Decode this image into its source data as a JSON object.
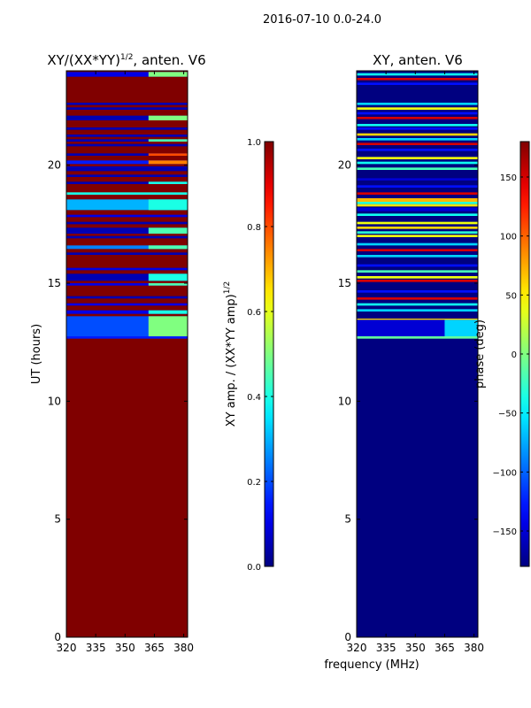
{
  "suptitle": "2016-07-10 0.0-24.0",
  "chart_data": [
    {
      "type": "heatmap",
      "title_main": "XY/(XX*YY)",
      "title_sup": "1/2",
      "title_tail": ", anten. V6",
      "xlabel": "",
      "ylabel": "UT (hours)",
      "xlim": [
        320,
        382
      ],
      "ylim": [
        0,
        24
      ],
      "xticks": [
        320,
        335,
        350,
        365,
        380
      ],
      "yticks": [
        0,
        5,
        10,
        15,
        20
      ],
      "colorbar": {
        "label_main": "XY amp. / (XX*YY amp)",
        "label_sup": "1/2",
        "range": [
          0.0,
          1.0
        ],
        "ticks": [
          "0.0",
          "0.2",
          "0.4",
          "0.6",
          "0.8",
          "1.0"
        ],
        "tick_values": [
          0.0,
          0.2,
          0.4,
          0.6,
          0.8,
          1.0
        ]
      },
      "background_value": 1.0,
      "bands": [
        {
          "y0": 12.65,
          "y1": 12.75,
          "value": 0.15
        },
        {
          "y0": 12.75,
          "y1": 13.6,
          "value": 0.2,
          "patch_x0": 362,
          "value_patch": 0.5
        },
        {
          "y0": 13.7,
          "y1": 13.85,
          "value": 0.1,
          "patch_x0": 362,
          "value_patch": 0.4
        },
        {
          "y0": 14.05,
          "y1": 14.15,
          "value": 0.1
        },
        {
          "y0": 14.35,
          "y1": 14.45,
          "value": 0.05
        },
        {
          "y0": 14.9,
          "y1": 15.0,
          "value": 0.1,
          "patch_x0": 362,
          "value_patch": 0.45
        },
        {
          "y0": 15.1,
          "y1": 15.4,
          "value": 0.05,
          "patch_x0": 362,
          "value_patch": 0.4
        },
        {
          "y0": 15.55,
          "y1": 15.65,
          "value": 0.1
        },
        {
          "y0": 16.2,
          "y1": 16.3,
          "value": 0.05
        },
        {
          "y0": 16.45,
          "y1": 16.6,
          "value": 0.25,
          "patch_x0": 362,
          "value_patch": 0.45
        },
        {
          "y0": 16.9,
          "y1": 17.0,
          "value": 0.05
        },
        {
          "y0": 17.1,
          "y1": 17.35,
          "value": 0.05,
          "patch_x0": 362,
          "value_patch": 0.45
        },
        {
          "y0": 17.5,
          "y1": 17.6,
          "value": 0.05
        },
        {
          "y0": 17.8,
          "y1": 17.9,
          "value": 0.1
        },
        {
          "y0": 18.1,
          "y1": 18.55,
          "value": 0.3,
          "patch_x0": 362,
          "value_patch": 0.4
        },
        {
          "y0": 18.75,
          "y1": 18.85,
          "value": 0.4
        },
        {
          "y0": 19.2,
          "y1": 19.3,
          "value": 0.05,
          "patch_x0": 362,
          "value_patch": 0.4
        },
        {
          "y0": 19.5,
          "y1": 19.6,
          "value": 0.05
        },
        {
          "y0": 19.75,
          "y1": 19.95,
          "value": 0.05
        },
        {
          "y0": 20.05,
          "y1": 20.2,
          "value": 0.15,
          "patch_x0": 362,
          "value_patch": 0.75
        },
        {
          "y0": 20.4,
          "y1": 20.5,
          "value": 0.05,
          "patch_x0": 362,
          "value_patch": 0.8
        },
        {
          "y0": 20.8,
          "y1": 20.9,
          "value": 0.05
        },
        {
          "y0": 21.0,
          "y1": 21.1,
          "value": 0.05,
          "patch_x0": 362,
          "value_patch": 0.45
        },
        {
          "y0": 21.2,
          "y1": 21.3,
          "value": 0.05
        },
        {
          "y0": 21.5,
          "y1": 21.6,
          "value": 0.05
        },
        {
          "y0": 21.9,
          "y1": 22.1,
          "value": 0.05,
          "patch_x0": 362,
          "value_patch": 0.5
        },
        {
          "y0": 22.35,
          "y1": 22.45,
          "value": 0.05
        },
        {
          "y0": 22.55,
          "y1": 22.65,
          "value": 0.05
        },
        {
          "y0": 23.75,
          "y1": 23.95,
          "value": 0.1,
          "patch_x0": 362,
          "value_patch": 0.5
        }
      ]
    },
    {
      "type": "heatmap",
      "title": "XY, anten. V6",
      "xlabel": "frequency (MHz)",
      "ylabel": "",
      "xlim": [
        320,
        382
      ],
      "ylim": [
        0,
        24
      ],
      "xticks": [
        320,
        335,
        350,
        365,
        380
      ],
      "yticks": [
        0,
        5,
        10,
        15,
        20
      ],
      "colorbar": {
        "label": "phase (deg)",
        "range": [
          -180,
          180
        ],
        "ticks": [
          "−150",
          "−100",
          "−50",
          "0",
          "50",
          "100",
          "150"
        ],
        "tick_values": [
          -150,
          -100,
          -50,
          0,
          50,
          100,
          150
        ]
      },
      "background_value": -180,
      "bands": [
        {
          "y0": 12.65,
          "y1": 12.75,
          "value": -10
        },
        {
          "y0": 12.75,
          "y1": 13.45,
          "value": -150,
          "patch_x0": 365,
          "value_patch": -60
        },
        {
          "y0": 13.45,
          "y1": 13.5,
          "value": 60
        },
        {
          "y0": 13.8,
          "y1": 13.9,
          "value": -60
        },
        {
          "y0": 14.05,
          "y1": 14.15,
          "value": -40
        },
        {
          "y0": 14.3,
          "y1": 14.4,
          "value": 150
        },
        {
          "y0": 14.6,
          "y1": 14.7,
          "value": -130
        },
        {
          "y0": 15.05,
          "y1": 15.15,
          "value": 150
        },
        {
          "y0": 15.2,
          "y1": 15.3,
          "value": 40
        },
        {
          "y0": 15.45,
          "y1": 15.55,
          "value": -20
        },
        {
          "y0": 15.7,
          "y1": 15.8,
          "value": -130
        },
        {
          "y0": 16.1,
          "y1": 16.2,
          "value": -60
        },
        {
          "y0": 16.35,
          "y1": 16.45,
          "value": 150
        },
        {
          "y0": 16.6,
          "y1": 16.7,
          "value": -60
        },
        {
          "y0": 16.95,
          "y1": 17.05,
          "value": 40
        },
        {
          "y0": 17.1,
          "y1": 17.2,
          "value": -30
        },
        {
          "y0": 17.3,
          "y1": 17.4,
          "value": 60
        },
        {
          "y0": 17.5,
          "y1": 17.6,
          "value": 40
        },
        {
          "y0": 17.85,
          "y1": 17.95,
          "value": -40
        },
        {
          "y0": 18.05,
          "y1": 18.2,
          "value": -150
        },
        {
          "y0": 18.25,
          "y1": 18.35,
          "value": 55
        },
        {
          "y0": 18.35,
          "y1": 18.45,
          "value": -30
        },
        {
          "y0": 18.45,
          "y1": 18.6,
          "value": 70
        },
        {
          "y0": 18.75,
          "y1": 18.85,
          "value": 150
        },
        {
          "y0": 19.05,
          "y1": 19.15,
          "value": -130
        },
        {
          "y0": 19.35,
          "y1": 19.45,
          "value": -150
        },
        {
          "y0": 19.8,
          "y1": 19.9,
          "value": -20
        },
        {
          "y0": 20.05,
          "y1": 20.15,
          "value": -40
        },
        {
          "y0": 20.25,
          "y1": 20.35,
          "value": 40
        },
        {
          "y0": 20.6,
          "y1": 20.7,
          "value": -130
        },
        {
          "y0": 20.85,
          "y1": 20.95,
          "value": 150
        },
        {
          "y0": 21.05,
          "y1": 21.15,
          "value": -60
        },
        {
          "y0": 21.25,
          "y1": 21.35,
          "value": 60
        },
        {
          "y0": 21.5,
          "y1": 21.6,
          "value": -130
        },
        {
          "y0": 21.65,
          "y1": 21.75,
          "value": -40
        },
        {
          "y0": 21.95,
          "y1": 22.05,
          "value": 150
        },
        {
          "y0": 22.15,
          "y1": 22.25,
          "value": -130
        },
        {
          "y0": 22.35,
          "y1": 22.45,
          "value": 40
        },
        {
          "y0": 22.55,
          "y1": 22.65,
          "value": -60
        },
        {
          "y0": 23.4,
          "y1": 23.5,
          "value": -130
        },
        {
          "y0": 23.6,
          "y1": 23.7,
          "value": 150
        },
        {
          "y0": 23.8,
          "y1": 23.9,
          "value": -40
        }
      ]
    }
  ]
}
